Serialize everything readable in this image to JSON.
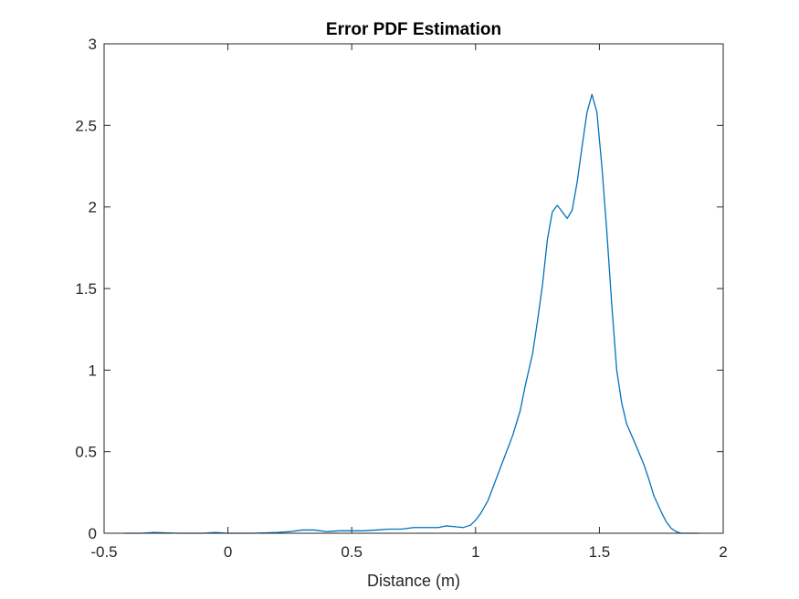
{
  "chart_data": {
    "type": "line",
    "title": "Error PDF Estimation",
    "xlabel": "Distance (m)",
    "ylabel": "",
    "xlim": [
      -0.5,
      2
    ],
    "ylim": [
      0,
      3
    ],
    "xticks": [
      -0.5,
      0,
      0.5,
      1,
      1.5,
      2
    ],
    "xtick_labels": [
      "-0.5",
      "0",
      "0.5",
      "1",
      "1.5",
      "2"
    ],
    "yticks": [
      0,
      0.5,
      1,
      1.5,
      2,
      2.5,
      3
    ],
    "ytick_labels": [
      "0",
      "0.5",
      "1",
      "1.5",
      "2",
      "2.5",
      "3"
    ],
    "grid": false,
    "series": [
      {
        "color": "#0072BD",
        "x": [
          -0.42,
          -0.35,
          -0.3,
          -0.2,
          -0.1,
          -0.05,
          0.0,
          0.1,
          0.2,
          0.25,
          0.3,
          0.35,
          0.4,
          0.45,
          0.5,
          0.55,
          0.6,
          0.65,
          0.7,
          0.75,
          0.8,
          0.85,
          0.88,
          0.92,
          0.95,
          0.98,
          1.0,
          1.02,
          1.05,
          1.08,
          1.1,
          1.13,
          1.15,
          1.18,
          1.2,
          1.23,
          1.25,
          1.27,
          1.29,
          1.31,
          1.33,
          1.35,
          1.37,
          1.39,
          1.41,
          1.43,
          1.45,
          1.47,
          1.49,
          1.51,
          1.53,
          1.55,
          1.57,
          1.59,
          1.61,
          1.63,
          1.65,
          1.68,
          1.7,
          1.72,
          1.75,
          1.77,
          1.79,
          1.81,
          1.83,
          1.85,
          1.88,
          1.9
        ],
        "y": [
          0.0,
          0.0,
          0.005,
          0.0,
          0.0,
          0.005,
          0.0,
          0.0,
          0.005,
          0.01,
          0.02,
          0.02,
          0.01,
          0.015,
          0.015,
          0.015,
          0.02,
          0.025,
          0.025,
          0.035,
          0.035,
          0.035,
          0.045,
          0.04,
          0.035,
          0.05,
          0.08,
          0.12,
          0.2,
          0.32,
          0.4,
          0.52,
          0.6,
          0.75,
          0.9,
          1.1,
          1.3,
          1.52,
          1.8,
          1.97,
          2.01,
          1.97,
          1.93,
          1.98,
          2.15,
          2.37,
          2.58,
          2.69,
          2.58,
          2.25,
          1.85,
          1.4,
          1.0,
          0.8,
          0.67,
          0.6,
          0.53,
          0.42,
          0.33,
          0.23,
          0.13,
          0.07,
          0.03,
          0.01,
          0.0,
          0.0,
          0.0,
          0.0
        ]
      }
    ]
  }
}
